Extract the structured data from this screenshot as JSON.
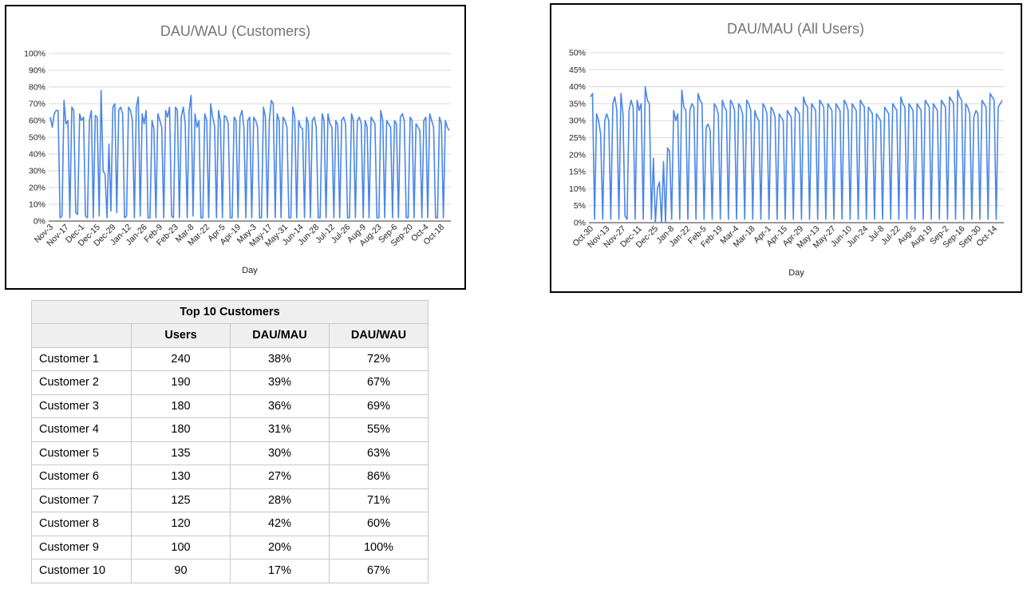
{
  "chart_data": [
    {
      "type": "line",
      "title": "DAU/WAU (Customers)",
      "xlabel": "Day",
      "ylabel": "",
      "ylim": [
        0,
        1.0
      ],
      "y_ticks": [
        "0%",
        "10%",
        "20%",
        "30%",
        "40%",
        "50%",
        "60%",
        "70%",
        "80%",
        "90%",
        "100%"
      ],
      "x_tick_labels": [
        "Nov-3",
        "Nov-17",
        "Dec-1",
        "Dec-15",
        "Dec-29",
        "Jan-12",
        "Jan-26",
        "Feb-9",
        "Feb-23",
        "Mar-8",
        "Mar-22",
        "Apr-5",
        "Apr-19",
        "May-3",
        "May-17",
        "May-31",
        "Jun-14",
        "Jun-28",
        "Jul-12",
        "Jul-26",
        "Aug-9",
        "Aug-23",
        "Sep-6",
        "Sep-20",
        "Oct-4",
        "Oct-18"
      ],
      "grid": true,
      "legend": "none",
      "series": [
        {
          "color": "#4a86e8",
          "pattern_description_values": {
            "weekday_levels": [
              0.62,
              0.56,
              0.64,
              0.66,
              0.66,
              0.02,
              0.03,
              0.72,
              0.58,
              0.6,
              0.02,
              0.68,
              0.66,
              0.05,
              0.04,
              0.64,
              0.6,
              0.62,
              0.03,
              0.02,
              0.6,
              0.66,
              0.02,
              0.63,
              0.62,
              0.03,
              0.78,
              0.3,
              0.28,
              0.02,
              0.46,
              0.06,
              0.68,
              0.7,
              0.05,
              0.66,
              0.68,
              0.64,
              0.02,
              0.03,
              0.68,
              0.66,
              0.6,
              0.02,
              0.68,
              0.74,
              0.03,
              0.64,
              0.58,
              0.66,
              0.02,
              0.02,
              0.6,
              0.55,
              0.02,
              0.64,
              0.6,
              0.56,
              0.02,
              0.66,
              0.62,
              0.68,
              0.03,
              0.02,
              0.68,
              0.66,
              0.02,
              0.62,
              0.68,
              0.58,
              0.02,
              0.66,
              0.75,
              0.03,
              0.64,
              0.56,
              0.6,
              0.02,
              0.02,
              0.64,
              0.6,
              0.02,
              0.7,
              0.62,
              0.57,
              0.02,
              0.66,
              0.6,
              0.02,
              0.63,
              0.62,
              0.58,
              0.02,
              0.02,
              0.62,
              0.6,
              0.02,
              0.62,
              0.66,
              0.56,
              0.02,
              0.6,
              0.62,
              0.02,
              0.62,
              0.6,
              0.56,
              0.02,
              0.02,
              0.68,
              0.62,
              0.02,
              0.6,
              0.72,
              0.7,
              0.02,
              0.64,
              0.6,
              0.02,
              0.62,
              0.6,
              0.56,
              0.02,
              0.02,
              0.68,
              0.62,
              0.02,
              0.6,
              0.56,
              0.55,
              0.02,
              0.62,
              0.58,
              0.02,
              0.6,
              0.62,
              0.56,
              0.02,
              0.02,
              0.64,
              0.6,
              0.02,
              0.64,
              0.58,
              0.56,
              0.02,
              0.6,
              0.57,
              0.02,
              0.6,
              0.62,
              0.58,
              0.02,
              0.02,
              0.64,
              0.6,
              0.02,
              0.6,
              0.62,
              0.58,
              0.02,
              0.6,
              0.56,
              0.02,
              0.62,
              0.6,
              0.58,
              0.02,
              0.02,
              0.66,
              0.6,
              0.02,
              0.6,
              0.58,
              0.56,
              0.02,
              0.6,
              0.58,
              0.02,
              0.62,
              0.64,
              0.6,
              0.02,
              0.02,
              0.62,
              0.6,
              0.02,
              0.58,
              0.56,
              0.54,
              0.02,
              0.6,
              0.62,
              0.02,
              0.64,
              0.6,
              0.56,
              0.02,
              0.02,
              0.62,
              0.58,
              0.02,
              0.6,
              0.56,
              0.54
            ]
          }
        }
      ]
    },
    {
      "type": "line",
      "title": "DAU/MAU (All Users)",
      "xlabel": "Day",
      "ylabel": "",
      "ylim": [
        0,
        0.5
      ],
      "y_ticks": [
        "0%",
        "5%",
        "10%",
        "15%",
        "20%",
        "25%",
        "30%",
        "35%",
        "40%",
        "45%",
        "50%"
      ],
      "x_tick_labels": [
        "Oct-30",
        "Nov-13",
        "Nov-27",
        "Dec-11",
        "Dec-25",
        "Jan-8",
        "Jan-22",
        "Feb-5",
        "Feb-19",
        "Mar-4",
        "Mar-18",
        "Apr-1",
        "Apr-15",
        "Apr-29",
        "May-13",
        "May-27",
        "Jun-10",
        "Jun-24",
        "Jul-8",
        "Jul-22",
        "Aug-5",
        "Aug-19",
        "Sep-2",
        "Sep-16",
        "Sep-30",
        "Oct-14"
      ],
      "grid": true,
      "legend": "none",
      "series": [
        {
          "color": "#4a86e8",
          "pattern_description_values": {
            "weekday_levels": [
              0.37,
              0.38,
              0.01,
              0.32,
              0.3,
              0.26,
              0.01,
              0.3,
              0.32,
              0.3,
              0.01,
              0.35,
              0.37,
              0.33,
              0.01,
              0.38,
              0.32,
              0.02,
              0.01,
              0.33,
              0.36,
              0.34,
              0.01,
              0.36,
              0.33,
              0.35,
              0.01,
              0.4,
              0.36,
              0.35,
              0.01,
              0.19,
              0.0,
              0.1,
              0.12,
              0.0,
              0.18,
              0.0,
              0.22,
              0.21,
              0.01,
              0.33,
              0.3,
              0.32,
              0.01,
              0.39,
              0.34,
              0.33,
              0.01,
              0.33,
              0.35,
              0.34,
              0.01,
              0.38,
              0.36,
              0.35,
              0.01,
              0.28,
              0.29,
              0.27,
              0.01,
              0.35,
              0.34,
              0.32,
              0.01,
              0.36,
              0.34,
              0.33,
              0.01,
              0.36,
              0.35,
              0.33,
              0.01,
              0.35,
              0.34,
              0.32,
              0.01,
              0.36,
              0.35,
              0.33,
              0.01,
              0.33,
              0.31,
              0.3,
              0.01,
              0.35,
              0.34,
              0.32,
              0.01,
              0.34,
              0.33,
              0.31,
              0.01,
              0.32,
              0.31,
              0.3,
              0.01,
              0.33,
              0.32,
              0.31,
              0.01,
              0.34,
              0.33,
              0.32,
              0.01,
              0.37,
              0.35,
              0.34,
              0.01,
              0.35,
              0.34,
              0.33,
              0.01,
              0.36,
              0.35,
              0.34,
              0.01,
              0.35,
              0.34,
              0.33,
              0.01,
              0.35,
              0.34,
              0.33,
              0.01,
              0.36,
              0.35,
              0.33,
              0.01,
              0.35,
              0.34,
              0.33,
              0.01,
              0.36,
              0.35,
              0.34,
              0.01,
              0.34,
              0.33,
              0.32,
              0.01,
              0.32,
              0.31,
              0.3,
              0.01,
              0.34,
              0.33,
              0.32,
              0.01,
              0.35,
              0.34,
              0.33,
              0.01,
              0.37,
              0.35,
              0.34,
              0.01,
              0.35,
              0.34,
              0.33,
              0.01,
              0.35,
              0.34,
              0.33,
              0.01,
              0.36,
              0.35,
              0.34,
              0.01,
              0.35,
              0.34,
              0.33,
              0.01,
              0.36,
              0.35,
              0.34,
              0.01,
              0.37,
              0.36,
              0.35,
              0.01,
              0.39,
              0.37,
              0.36,
              0.01,
              0.35,
              0.34,
              0.32,
              0.01,
              0.31,
              0.33,
              0.32,
              0.01,
              0.36,
              0.35,
              0.34,
              0.01,
              0.38,
              0.37,
              0.36,
              0.01,
              0.34,
              0.35,
              0.36
            ]
          }
        }
      ]
    }
  ],
  "table": {
    "title": "Top 10 Customers",
    "headers": [
      "",
      "Users",
      "DAU/MAU",
      "DAU/WAU"
    ],
    "rows": [
      [
        "Customer 1",
        "240",
        "38%",
        "72%"
      ],
      [
        "Customer 2",
        "190",
        "39%",
        "67%"
      ],
      [
        "Customer 3",
        "180",
        "36%",
        "69%"
      ],
      [
        "Customer 4",
        "180",
        "31%",
        "55%"
      ],
      [
        "Customer 5",
        "135",
        "30%",
        "63%"
      ],
      [
        "Customer 6",
        "130",
        "27%",
        "86%"
      ],
      [
        "Customer 7",
        "125",
        "28%",
        "71%"
      ],
      [
        "Customer 8",
        "120",
        "42%",
        "60%"
      ],
      [
        "Customer 9",
        "100",
        "20%",
        "100%"
      ],
      [
        "Customer 10",
        "90",
        "17%",
        "67%"
      ]
    ]
  }
}
